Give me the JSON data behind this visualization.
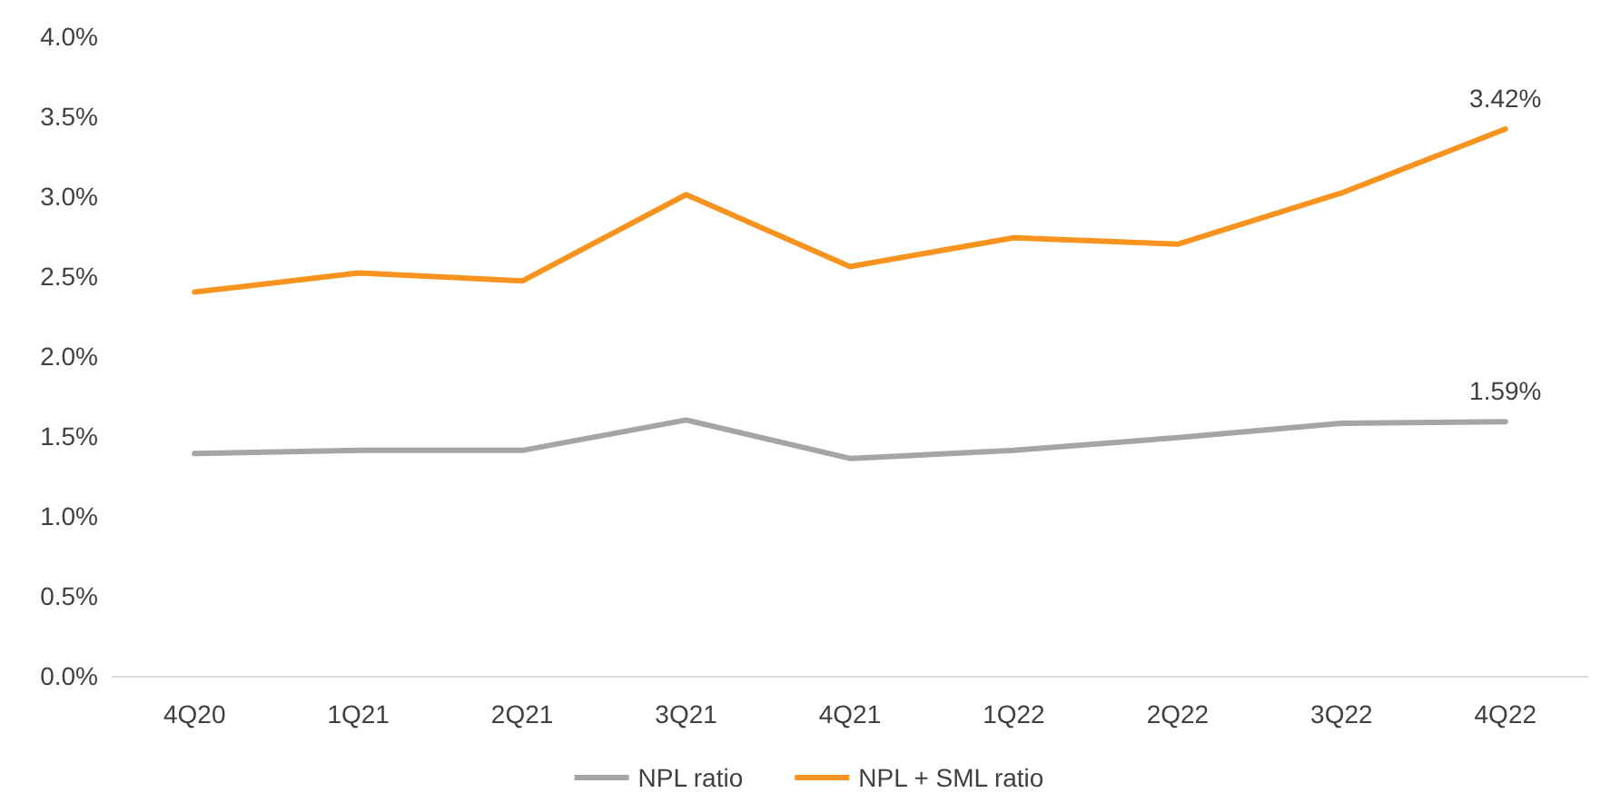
{
  "chart_data": {
    "type": "line",
    "categories": [
      "4Q20",
      "1Q21",
      "2Q21",
      "3Q21",
      "4Q21",
      "1Q22",
      "2Q22",
      "3Q22",
      "4Q22"
    ],
    "series": [
      {
        "name": "NPL ratio",
        "color": "#a5a5a5",
        "values": [
          1.39,
          1.41,
          1.41,
          1.6,
          1.36,
          1.41,
          1.49,
          1.58,
          1.59
        ],
        "value_labels": [
          null,
          null,
          null,
          null,
          null,
          null,
          null,
          null,
          "1.59%"
        ]
      },
      {
        "name": "NPL + SML ratio",
        "color": "#f7931e",
        "values": [
          2.4,
          2.52,
          2.47,
          3.01,
          2.56,
          2.74,
          2.7,
          3.02,
          3.42
        ],
        "value_labels": [
          null,
          null,
          null,
          null,
          null,
          null,
          null,
          null,
          "3.42%"
        ]
      }
    ],
    "ylim": [
      0,
      4
    ],
    "yticks": [
      {
        "value": 0,
        "label": "0.0%"
      },
      {
        "value": 0.5,
        "label": "0.5%"
      },
      {
        "value": 1,
        "label": "1.0%"
      },
      {
        "value": 1.5,
        "label": "1.5%"
      },
      {
        "value": 2,
        "label": "2.0%"
      },
      {
        "value": 2.5,
        "label": "2.5%"
      },
      {
        "value": 3,
        "label": "3.0%"
      },
      {
        "value": 3.5,
        "label": "3.5%"
      },
      {
        "value": 4,
        "label": "4.0%"
      }
    ],
    "grid": false,
    "legend": "bottom",
    "marker": "none",
    "line_style": "solid"
  }
}
